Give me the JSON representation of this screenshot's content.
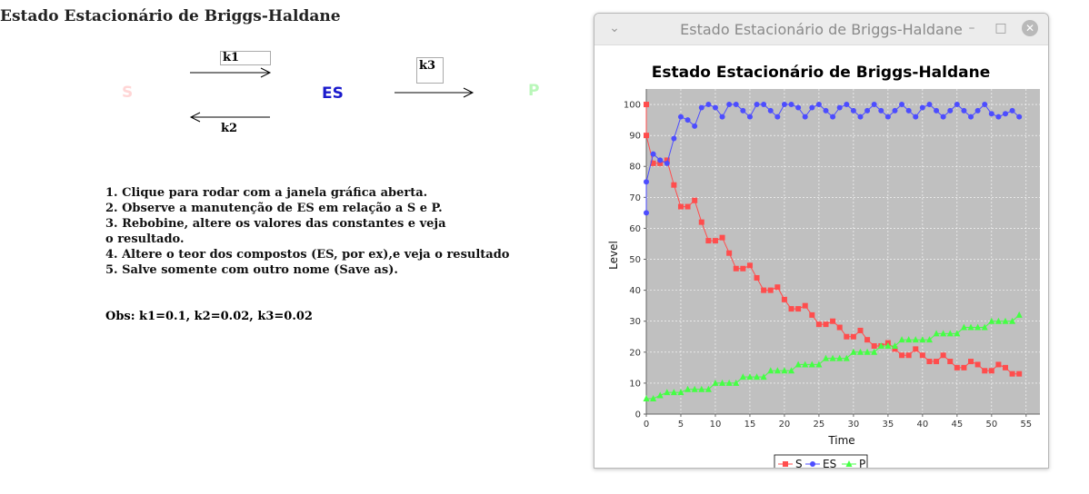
{
  "page": {
    "title": "Estado Estacionário de Briggs-Haldane"
  },
  "diagram": {
    "species": [
      {
        "label": "S",
        "color": "#ffd6d6"
      },
      {
        "label": "ES",
        "color": "#1a1acc"
      },
      {
        "label": "P",
        "color": "#b9f7b9"
      }
    ],
    "k1": "k1",
    "k2": "k2",
    "k3": "k3"
  },
  "instructions": [
    "1. Clique para rodar com a janela gráfica aberta.",
    "2. Observe a manutenção de ES em relação a S e P.",
    "3. Rebobine, altere os valores das constantes e veja",
    "o resultado.",
    "4. Altere o teor dos compostos (ES, por ex),e veja o resultado",
    "5. Salve somente com outro nome (Save as)."
  ],
  "obs": "Obs: k1=0.1, k2=0.02, k3=0.02",
  "window": {
    "title": "Estado Estacionário de Briggs-Haldane",
    "menu_icon": "chevron-down-icon",
    "minimize_icon": "minimize-icon",
    "maximize_icon": "maximize-icon",
    "close_icon": "close-icon"
  },
  "chart_data": {
    "type": "line",
    "title": "Estado Estacionário de Briggs-Haldane",
    "xlabel": "Time",
    "ylabel": "Level",
    "xlim": [
      0,
      57
    ],
    "ylim": [
      0,
      105
    ],
    "xticks": [
      0,
      5,
      10,
      15,
      20,
      25,
      30,
      35,
      40,
      45,
      50,
      55
    ],
    "yticks": [
      0,
      10,
      20,
      30,
      40,
      50,
      60,
      70,
      80,
      90,
      100
    ],
    "grid": true,
    "background": "#c0c0c0",
    "legend_position": "bottom",
    "series": [
      {
        "name": "S",
        "color": "#ff4d4d",
        "marker": "square",
        "points": [
          [
            0,
            100
          ],
          [
            0,
            90
          ],
          [
            1,
            81
          ],
          [
            2,
            81
          ],
          [
            3,
            82
          ],
          [
            4,
            74
          ],
          [
            5,
            67
          ],
          [
            6,
            67
          ],
          [
            7,
            69
          ],
          [
            8,
            62
          ],
          [
            9,
            56
          ],
          [
            10,
            56
          ],
          [
            11,
            57
          ],
          [
            12,
            52
          ],
          [
            13,
            47
          ],
          [
            14,
            47
          ],
          [
            15,
            48
          ],
          [
            16,
            44
          ],
          [
            17,
            40
          ],
          [
            18,
            40
          ],
          [
            19,
            41
          ],
          [
            20,
            37
          ],
          [
            21,
            34
          ],
          [
            22,
            34
          ],
          [
            23,
            35
          ],
          [
            24,
            32
          ],
          [
            25,
            29
          ],
          [
            26,
            29
          ],
          [
            27,
            30
          ],
          [
            28,
            28
          ],
          [
            29,
            25
          ],
          [
            30,
            25
          ],
          [
            31,
            27
          ],
          [
            32,
            24
          ],
          [
            33,
            22
          ],
          [
            34,
            22
          ],
          [
            35,
            23
          ],
          [
            36,
            21
          ],
          [
            37,
            19
          ],
          [
            38,
            19
          ],
          [
            39,
            21
          ],
          [
            40,
            19
          ],
          [
            41,
            17
          ],
          [
            42,
            17
          ],
          [
            43,
            19
          ],
          [
            44,
            17
          ],
          [
            45,
            15
          ],
          [
            46,
            15
          ],
          [
            47,
            17
          ],
          [
            48,
            16
          ],
          [
            49,
            14
          ],
          [
            50,
            14
          ],
          [
            51,
            16
          ],
          [
            52,
            15
          ],
          [
            53,
            13
          ],
          [
            54,
            13
          ]
        ]
      },
      {
        "name": "ES",
        "color": "#4d4dff",
        "marker": "circle",
        "points": [
          [
            0,
            65
          ],
          [
            0,
            75
          ],
          [
            1,
            84
          ],
          [
            2,
            82
          ],
          [
            3,
            81
          ],
          [
            4,
            89
          ],
          [
            5,
            96
          ],
          [
            6,
            95
          ],
          [
            7,
            93
          ],
          [
            8,
            99
          ],
          [
            9,
            100
          ],
          [
            10,
            99
          ],
          [
            11,
            96
          ],
          [
            12,
            100
          ],
          [
            13,
            100
          ],
          [
            14,
            98
          ],
          [
            15,
            96
          ],
          [
            16,
            100
          ],
          [
            17,
            100
          ],
          [
            18,
            98
          ],
          [
            19,
            96
          ],
          [
            20,
            100
          ],
          [
            21,
            100
          ],
          [
            22,
            99
          ],
          [
            23,
            96
          ],
          [
            24,
            99
          ],
          [
            25,
            100
          ],
          [
            26,
            98
          ],
          [
            27,
            96
          ],
          [
            28,
            99
          ],
          [
            29,
            100
          ],
          [
            30,
            98
          ],
          [
            31,
            96
          ],
          [
            32,
            98
          ],
          [
            33,
            100
          ],
          [
            34,
            98
          ],
          [
            35,
            96
          ],
          [
            36,
            98
          ],
          [
            37,
            100
          ],
          [
            38,
            98
          ],
          [
            39,
            96
          ],
          [
            40,
            99
          ],
          [
            41,
            100
          ],
          [
            42,
            98
          ],
          [
            43,
            96
          ],
          [
            44,
            98
          ],
          [
            45,
            100
          ],
          [
            46,
            98
          ],
          [
            47,
            96
          ],
          [
            48,
            98
          ],
          [
            49,
            100
          ],
          [
            50,
            97
          ],
          [
            51,
            96
          ],
          [
            52,
            97
          ],
          [
            53,
            98
          ],
          [
            54,
            96
          ]
        ]
      },
      {
        "name": "P",
        "color": "#44ff44",
        "marker": "triangle",
        "points": [
          [
            0,
            5
          ],
          [
            1,
            5
          ],
          [
            2,
            6
          ],
          [
            3,
            7
          ],
          [
            4,
            7
          ],
          [
            5,
            7
          ],
          [
            6,
            8
          ],
          [
            7,
            8
          ],
          [
            8,
            8
          ],
          [
            9,
            8
          ],
          [
            10,
            10
          ],
          [
            11,
            10
          ],
          [
            12,
            10
          ],
          [
            13,
            10
          ],
          [
            14,
            12
          ],
          [
            15,
            12
          ],
          [
            16,
            12
          ],
          [
            17,
            12
          ],
          [
            18,
            14
          ],
          [
            19,
            14
          ],
          [
            20,
            14
          ],
          [
            21,
            14
          ],
          [
            22,
            16
          ],
          [
            23,
            16
          ],
          [
            24,
            16
          ],
          [
            25,
            16
          ],
          [
            26,
            18
          ],
          [
            27,
            18
          ],
          [
            28,
            18
          ],
          [
            29,
            18
          ],
          [
            30,
            20
          ],
          [
            31,
            20
          ],
          [
            32,
            20
          ],
          [
            33,
            20
          ],
          [
            34,
            22
          ],
          [
            35,
            22
          ],
          [
            36,
            22
          ],
          [
            37,
            24
          ],
          [
            38,
            24
          ],
          [
            39,
            24
          ],
          [
            40,
            24
          ],
          [
            41,
            24
          ],
          [
            42,
            26
          ],
          [
            43,
            26
          ],
          [
            44,
            26
          ],
          [
            45,
            26
          ],
          [
            46,
            28
          ],
          [
            47,
            28
          ],
          [
            48,
            28
          ],
          [
            49,
            28
          ],
          [
            50,
            30
          ],
          [
            51,
            30
          ],
          [
            52,
            30
          ],
          [
            53,
            30
          ],
          [
            54,
            32
          ]
        ]
      }
    ]
  }
}
